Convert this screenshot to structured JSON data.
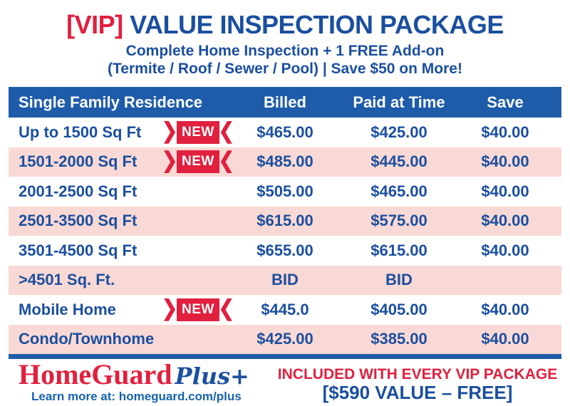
{
  "header": {
    "vip_bracket": "[VIP]",
    "title": "VALUE INSPECTION PACKAGE",
    "subtitle1": "Complete Home Inspection + 1 FREE Add-on",
    "subtitle2": "(Termite / Roof / Sewer / Pool) | Save $50 on More!"
  },
  "table": {
    "columns": [
      "Single Family Residence",
      "Billed",
      "Paid at Time",
      "Save"
    ],
    "new_badge_label": "NEW",
    "rows": [
      {
        "label": "Up to 1500 Sq Ft",
        "new": true,
        "billed": "$465.00",
        "paid": "$425.00",
        "save": "$40.00"
      },
      {
        "label": "1501-2000 Sq Ft",
        "new": true,
        "billed": "$485.00",
        "paid": "$445.00",
        "save": "$40.00"
      },
      {
        "label": "2001-2500 Sq Ft",
        "new": false,
        "billed": "$505.00",
        "paid": "$465.00",
        "save": "$40.00"
      },
      {
        "label": "2501-3500 Sq Ft",
        "new": false,
        "billed": "$615.00",
        "paid": "$575.00",
        "save": "$40.00"
      },
      {
        "label": "3501-4500 Sq Ft",
        "new": false,
        "billed": "$655.00",
        "paid": "$615.00",
        "save": "$40.00"
      },
      {
        "label": ">4501 Sq. Ft.",
        "new": false,
        "billed": "BID",
        "paid": "BID",
        "save": ""
      },
      {
        "label": "Mobile Home",
        "new": true,
        "billed": "$445.0",
        "paid": "$405.00",
        "save": "$40.00"
      },
      {
        "label": "Condo/Townhome",
        "new": false,
        "billed": "$425.00",
        "paid": "$385.00",
        "save": "$40.00"
      }
    ]
  },
  "footer": {
    "brand": "HomeGuard",
    "brand_suffix": "Plus+",
    "learn_more": "Learn more at: homeguard.com/plus",
    "promo_line1": "INCLUDED WITH EVERY VIP PACKAGE",
    "promo_line2": "[$590 VALUE – FREE]"
  },
  "colors": {
    "accent_red": "#e1203f",
    "text_blue": "#1b4f9f",
    "table_header_blue": "#1e5caa",
    "row_pink": "#f9d9d5"
  }
}
